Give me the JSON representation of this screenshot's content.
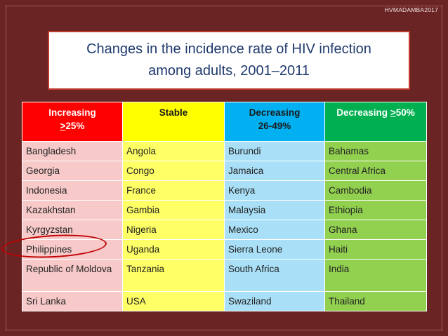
{
  "watermark": "HVMADAMBA2017",
  "title": {
    "line1": "Changes in the incidence rate of HIV infection",
    "line2": "among adults, 2001–2011"
  },
  "table": {
    "headers": [
      {
        "line1": "Increasing",
        "sym": ">",
        "rest": "25%"
      },
      {
        "line1": "Stable"
      },
      {
        "line1": "Decreasing",
        "line2": "26-49%"
      },
      {
        "line1": "Decreasing ",
        "sym": ">",
        "rest": "50%"
      }
    ],
    "rows": [
      [
        "Bangladesh",
        "Angola",
        "Burundi",
        "Bahamas"
      ],
      [
        "Georgia",
        "Congo",
        "Jamaica",
        "Central Africa"
      ],
      [
        "Indonesia",
        "France",
        "Kenya",
        "Cambodia"
      ],
      [
        "Kazakhstan",
        "Gambia",
        "Malaysia",
        "Ethiopia"
      ],
      [
        "Kyrgyzstan",
        "Nigeria",
        "Mexico",
        "Ghana"
      ],
      [
        "Philippines",
        "Uganda",
        "Sierra Leone",
        "Haiti"
      ],
      [
        "Republic of Moldova",
        "Tanzania",
        "South Africa",
        "India"
      ],
      [
        "Sri Lanka",
        "USA",
        "Swaziland",
        "Thailand"
      ]
    ]
  },
  "colors": {
    "background": "#6b2424",
    "increasing": "#ff0000",
    "stable": "#ffff00",
    "decreasing": "#00b0f0",
    "decreasing_50": "#00b050",
    "highlight_circle": "#c00000"
  }
}
